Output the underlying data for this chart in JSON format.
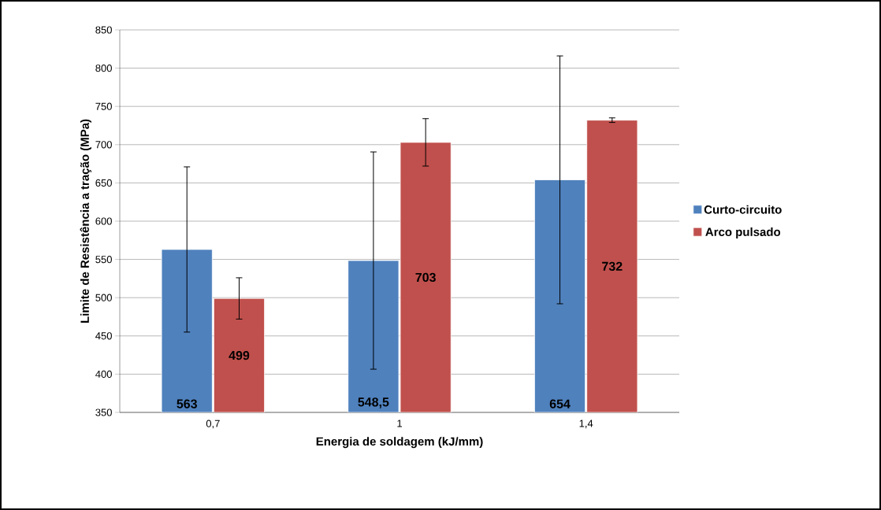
{
  "chart_data": {
    "type": "bar",
    "xlabel": "Energia de soldagem (kJ/mm)",
    "ylabel": "Limite de Resistência a tração (MPa)",
    "categories": [
      "0,7",
      "1",
      "1,4"
    ],
    "series": [
      {
        "name": "Curto-circuito",
        "color": "#4f81bd",
        "values": [
          563,
          548.5,
          654
        ],
        "errors": [
          108,
          142,
          162
        ],
        "value_labels": [
          "563",
          "548,5",
          "654"
        ]
      },
      {
        "name": "Arco pulsado",
        "color": "#c0504d",
        "values": [
          499,
          703,
          732
        ],
        "errors": [
          27,
          31,
          3
        ],
        "value_labels": [
          "499",
          "703",
          "732"
        ]
      }
    ],
    "ylim": [
      350,
      850
    ],
    "yticks": [
      350,
      400,
      450,
      500,
      550,
      600,
      650,
      700,
      750,
      800,
      850
    ],
    "grid": "y",
    "legend": "right"
  }
}
